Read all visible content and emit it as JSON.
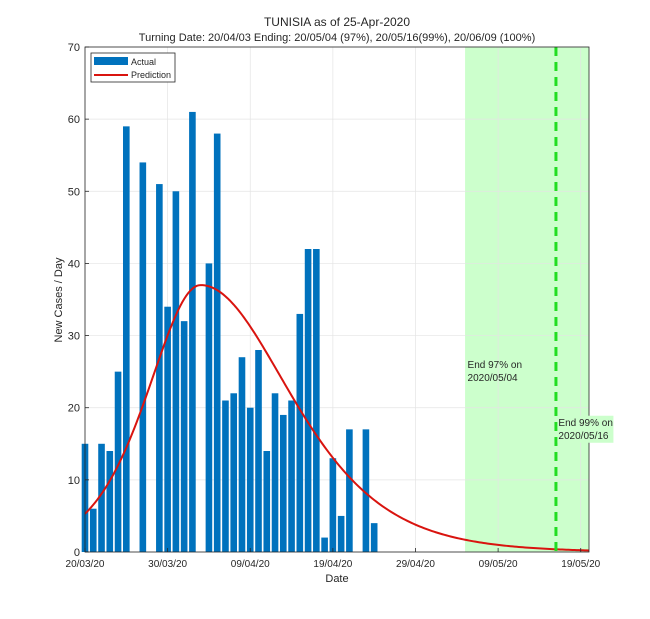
{
  "chart_data": {
    "type": "bar",
    "title": "TUNISIA as of 25-Apr-2020",
    "subtitle": "Turning Date: 20/04/03  Ending: 20/05/04 (97%), 20/05/16(99%), 20/06/09 (100%)",
    "xlabel": "Date",
    "ylabel": "New Cases / Day",
    "ylim": [
      0,
      70
    ],
    "xlim_days": [
      0,
      61
    ],
    "yticks": [
      0,
      10,
      20,
      30,
      40,
      50,
      60,
      70
    ],
    "xtick_days": [
      0,
      10,
      20,
      30,
      40,
      50,
      60
    ],
    "xtick_labels": [
      "20/03/20",
      "30/03/20",
      "09/04/20",
      "19/04/20",
      "29/04/20",
      "09/05/20",
      "19/05/20"
    ],
    "grid": true,
    "legend_position": "top-left",
    "colors": {
      "actual": "#0072bd",
      "prediction": "#d9140f",
      "end_region": "#ccffcc",
      "end_line": "#22dd22"
    },
    "series": [
      {
        "name": "Actual",
        "kind": "bar",
        "day_offsets": [
          0,
          1,
          2,
          3,
          4,
          5,
          7,
          9,
          10,
          11,
          12,
          13,
          14,
          15,
          16,
          17,
          18,
          19,
          20,
          21,
          22,
          23,
          24,
          25,
          26,
          27,
          28,
          29,
          30,
          31,
          32,
          33,
          34,
          35,
          36
        ],
        "values": [
          15,
          6,
          15,
          14,
          25,
          59,
          54,
          51,
          34,
          50,
          32,
          61,
          0,
          40,
          58,
          21,
          22,
          27,
          20,
          28,
          14,
          22,
          19,
          21,
          33,
          42,
          42,
          2,
          13,
          5,
          17,
          0,
          17,
          4,
          0
        ]
      },
      {
        "name": "Prediction",
        "kind": "line",
        "peak_value": 37,
        "peak_day": 14
      }
    ],
    "end_region": {
      "start_day": 46,
      "end_day": 61
    },
    "end_line_day": 57,
    "annotations": [
      {
        "lines": [
          "End 97% on",
          "2020/05/04"
        ],
        "day": 46.3,
        "value": 25.5
      },
      {
        "lines": [
          "End 99% on",
          "2020/05/16"
        ],
        "day": 57.3,
        "value": 17.5
      }
    ]
  }
}
